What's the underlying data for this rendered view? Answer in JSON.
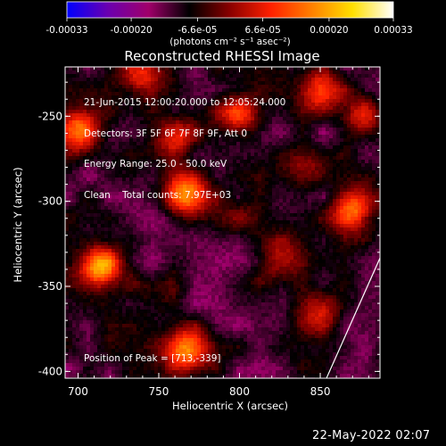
{
  "colorbar": {
    "tick_labels": [
      "-0.00033",
      "-0.00020",
      "-6.6e-05",
      "6.6e-05",
      "0.00020",
      "0.00033"
    ],
    "tick_values": [
      -0.00033,
      -0.0002,
      -6.6e-05,
      6.6e-05,
      0.0002,
      0.00033
    ],
    "range": [
      -0.00033,
      0.00033
    ],
    "units_label": "(photons cm⁻² s⁻¹ asec⁻²)",
    "colors": [
      "#0000ff",
      "#6a00b0",
      "#a0006a",
      "#000000",
      "#8a0000",
      "#ff2000",
      "#ff8000",
      "#ffe000",
      "#ffffff"
    ]
  },
  "chart_data": {
    "type": "heatmap",
    "title": "Reconstructed RHESSI Image",
    "xlabel": "Heliocentric X (arcsec)",
    "ylabel": "Heliocentric Y (arcsec)",
    "xlim": [
      692,
      887
    ],
    "ylim": [
      -404,
      -221
    ],
    "x_ticks": [
      700,
      750,
      800,
      850
    ],
    "y_ticks": [
      -250,
      -300,
      -350,
      -400
    ],
    "x_tick_labels": [
      "700",
      "750",
      "800",
      "850"
    ],
    "y_tick_labels": [
      "-250",
      "-300",
      "-350",
      "-400"
    ],
    "annotations": [
      "21-Jun-2015 12:00:20.000 to 12:05:24.000",
      "Detectors: 3F 5F 6F 7F 8F 9F, Att 0",
      "Energy Range: 25.0 - 50.0 keV",
      "Clean    Total counts: 7.97E+03"
    ],
    "peak_label": "Position of Peak = [713,-339]",
    "sources": [
      {
        "x": 713,
        "y": -339,
        "amp": 0.00033
      },
      {
        "x": 700,
        "y": -258,
        "amp": 0.00026
      },
      {
        "x": 768,
        "y": -296,
        "amp": 0.00029
      },
      {
        "x": 768,
        "y": -387,
        "amp": 0.00027
      },
      {
        "x": 760,
        "y": -262,
        "amp": 0.00018
      },
      {
        "x": 800,
        "y": -250,
        "amp": 0.0002
      },
      {
        "x": 850,
        "y": -235,
        "amp": 0.00021
      },
      {
        "x": 876,
        "y": -250,
        "amp": 0.00018
      },
      {
        "x": 870,
        "y": -305,
        "amp": 0.00026
      },
      {
        "x": 840,
        "y": -280,
        "amp": 0.00014
      },
      {
        "x": 825,
        "y": -335,
        "amp": 0.00016
      },
      {
        "x": 850,
        "y": -365,
        "amp": 0.00013
      },
      {
        "x": 740,
        "y": -228,
        "amp": 0.00017
      },
      {
        "x": 800,
        "y": -310,
        "amp": 8e-05
      },
      {
        "x": 745,
        "y": -355,
        "amp": 7e-05
      }
    ]
  },
  "footer": {
    "date": "22-May-2022 02:07"
  }
}
